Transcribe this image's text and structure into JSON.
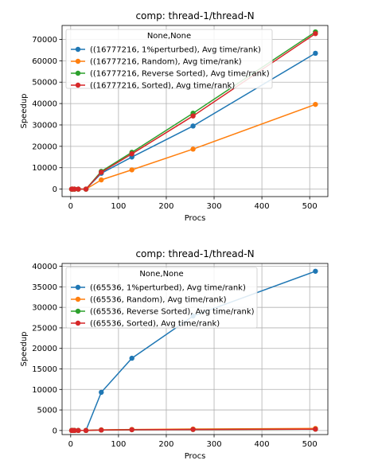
{
  "chart_data": [
    {
      "type": "line",
      "title": "comp: thread-1/thread-N",
      "xlabel": "Procs",
      "ylabel": "Speedup",
      "xlim": [
        -18,
        538
      ],
      "ylim": [
        -3500,
        76500
      ],
      "xticks": [
        0,
        100,
        200,
        300,
        400,
        500
      ],
      "yticks": [
        0,
        10000,
        20000,
        30000,
        40000,
        50000,
        60000,
        70000
      ],
      "grid": true,
      "legend": {
        "title": "None,None",
        "placement": "top-left"
      },
      "x": [
        2,
        4,
        8,
        16,
        32,
        64,
        128,
        256,
        512
      ],
      "series": [
        {
          "name": "((16777216, 1%perturbed), Avg time/rank)",
          "color": "#1f77b4",
          "values": [
            0,
            0,
            0,
            0,
            0,
            7400,
            15000,
            29500,
            63500
          ]
        },
        {
          "name": "((16777216, Random), Avg time/rank)",
          "color": "#ff7f0e",
          "values": [
            0,
            0,
            0,
            0,
            0,
            4300,
            9000,
            18700,
            39600
          ]
        },
        {
          "name": "((16777216, Reverse Sorted), Avg time/rank)",
          "color": "#2ca02c",
          "values": [
            0,
            0,
            0,
            0,
            0,
            8300,
            17200,
            35500,
            73500
          ]
        },
        {
          "name": "((16777216, Sorted), Avg time/rank)",
          "color": "#d62728",
          "values": [
            0,
            0,
            0,
            0,
            0,
            7900,
            16500,
            34200,
            72700
          ]
        }
      ]
    },
    {
      "type": "line",
      "title": "comp: thread-1/thread-N",
      "xlabel": "Procs",
      "ylabel": "Speedup",
      "xlim": [
        -18,
        538
      ],
      "ylim": [
        -1000,
        40700
      ],
      "xticks": [
        0,
        100,
        200,
        300,
        400,
        500
      ],
      "yticks": [
        0,
        5000,
        10000,
        15000,
        20000,
        25000,
        30000,
        35000,
        40000
      ],
      "grid": true,
      "legend": {
        "title": "None,None",
        "placement": "top-left"
      },
      "x": [
        2,
        4,
        8,
        16,
        32,
        64,
        128,
        256,
        512
      ],
      "series": [
        {
          "name": "((65536, 1%perturbed), Avg time/rank)",
          "color": "#1f77b4",
          "values": [
            0,
            0,
            0,
            0,
            0,
            9300,
            17600,
            27900,
            38800
          ]
        },
        {
          "name": "((65536, Random), Avg time/rank)",
          "color": "#ff7f0e",
          "values": [
            0,
            0,
            0,
            0,
            0,
            150,
            250,
            350,
            500
          ]
        },
        {
          "name": "((65536, Reverse Sorted), Avg time/rank)",
          "color": "#2ca02c",
          "values": [
            0,
            0,
            0,
            0,
            0,
            100,
            180,
            250,
            320
          ]
        },
        {
          "name": "((65536, Sorted), Avg time/rank)",
          "color": "#d62728",
          "values": [
            0,
            0,
            0,
            0,
            0,
            100,
            180,
            250,
            320
          ]
        }
      ]
    }
  ]
}
